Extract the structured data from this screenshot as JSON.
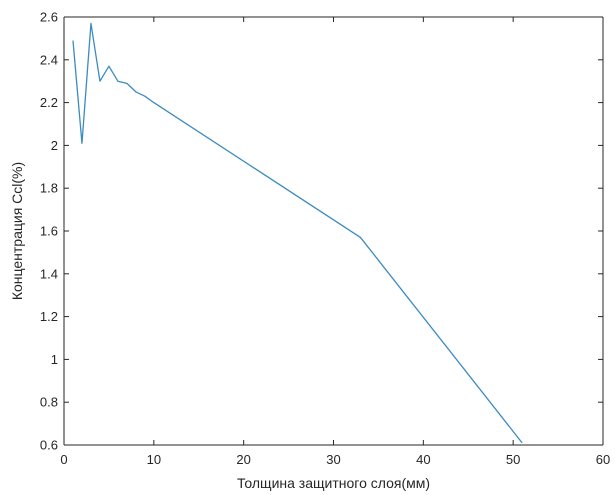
{
  "chart_data": {
    "type": "line",
    "title": "",
    "xlabel": "Толщина защитного слоя(мм)",
    "ylabel": "Концентрация Ccl(%)",
    "xlim": [
      0,
      60
    ],
    "ylim": [
      0.6,
      2.6
    ],
    "xticks": [
      0,
      10,
      20,
      30,
      40,
      50,
      60
    ],
    "yticks": [
      0.6,
      0.8,
      1,
      1.2,
      1.4,
      1.6,
      1.8,
      2,
      2.2,
      2.4,
      2.6
    ],
    "xtick_labels": [
      "0",
      "10",
      "20",
      "30",
      "40",
      "50",
      "60"
    ],
    "ytick_labels": [
      "0.6",
      "0.8",
      "1",
      "1.2",
      "1.4",
      "1.6",
      "1.8",
      "2",
      "2.2",
      "2.4",
      "2.6"
    ],
    "grid": false,
    "legend": "none",
    "series": [
      {
        "color": "#3A8BC2",
        "x": [
          1,
          2,
          3,
          4,
          5,
          6,
          7,
          8,
          9,
          10,
          33,
          51
        ],
        "y": [
          2.49,
          2.01,
          2.57,
          2.3,
          2.37,
          2.3,
          2.29,
          2.25,
          2.23,
          2.2,
          1.57,
          0.61
        ]
      }
    ]
  }
}
